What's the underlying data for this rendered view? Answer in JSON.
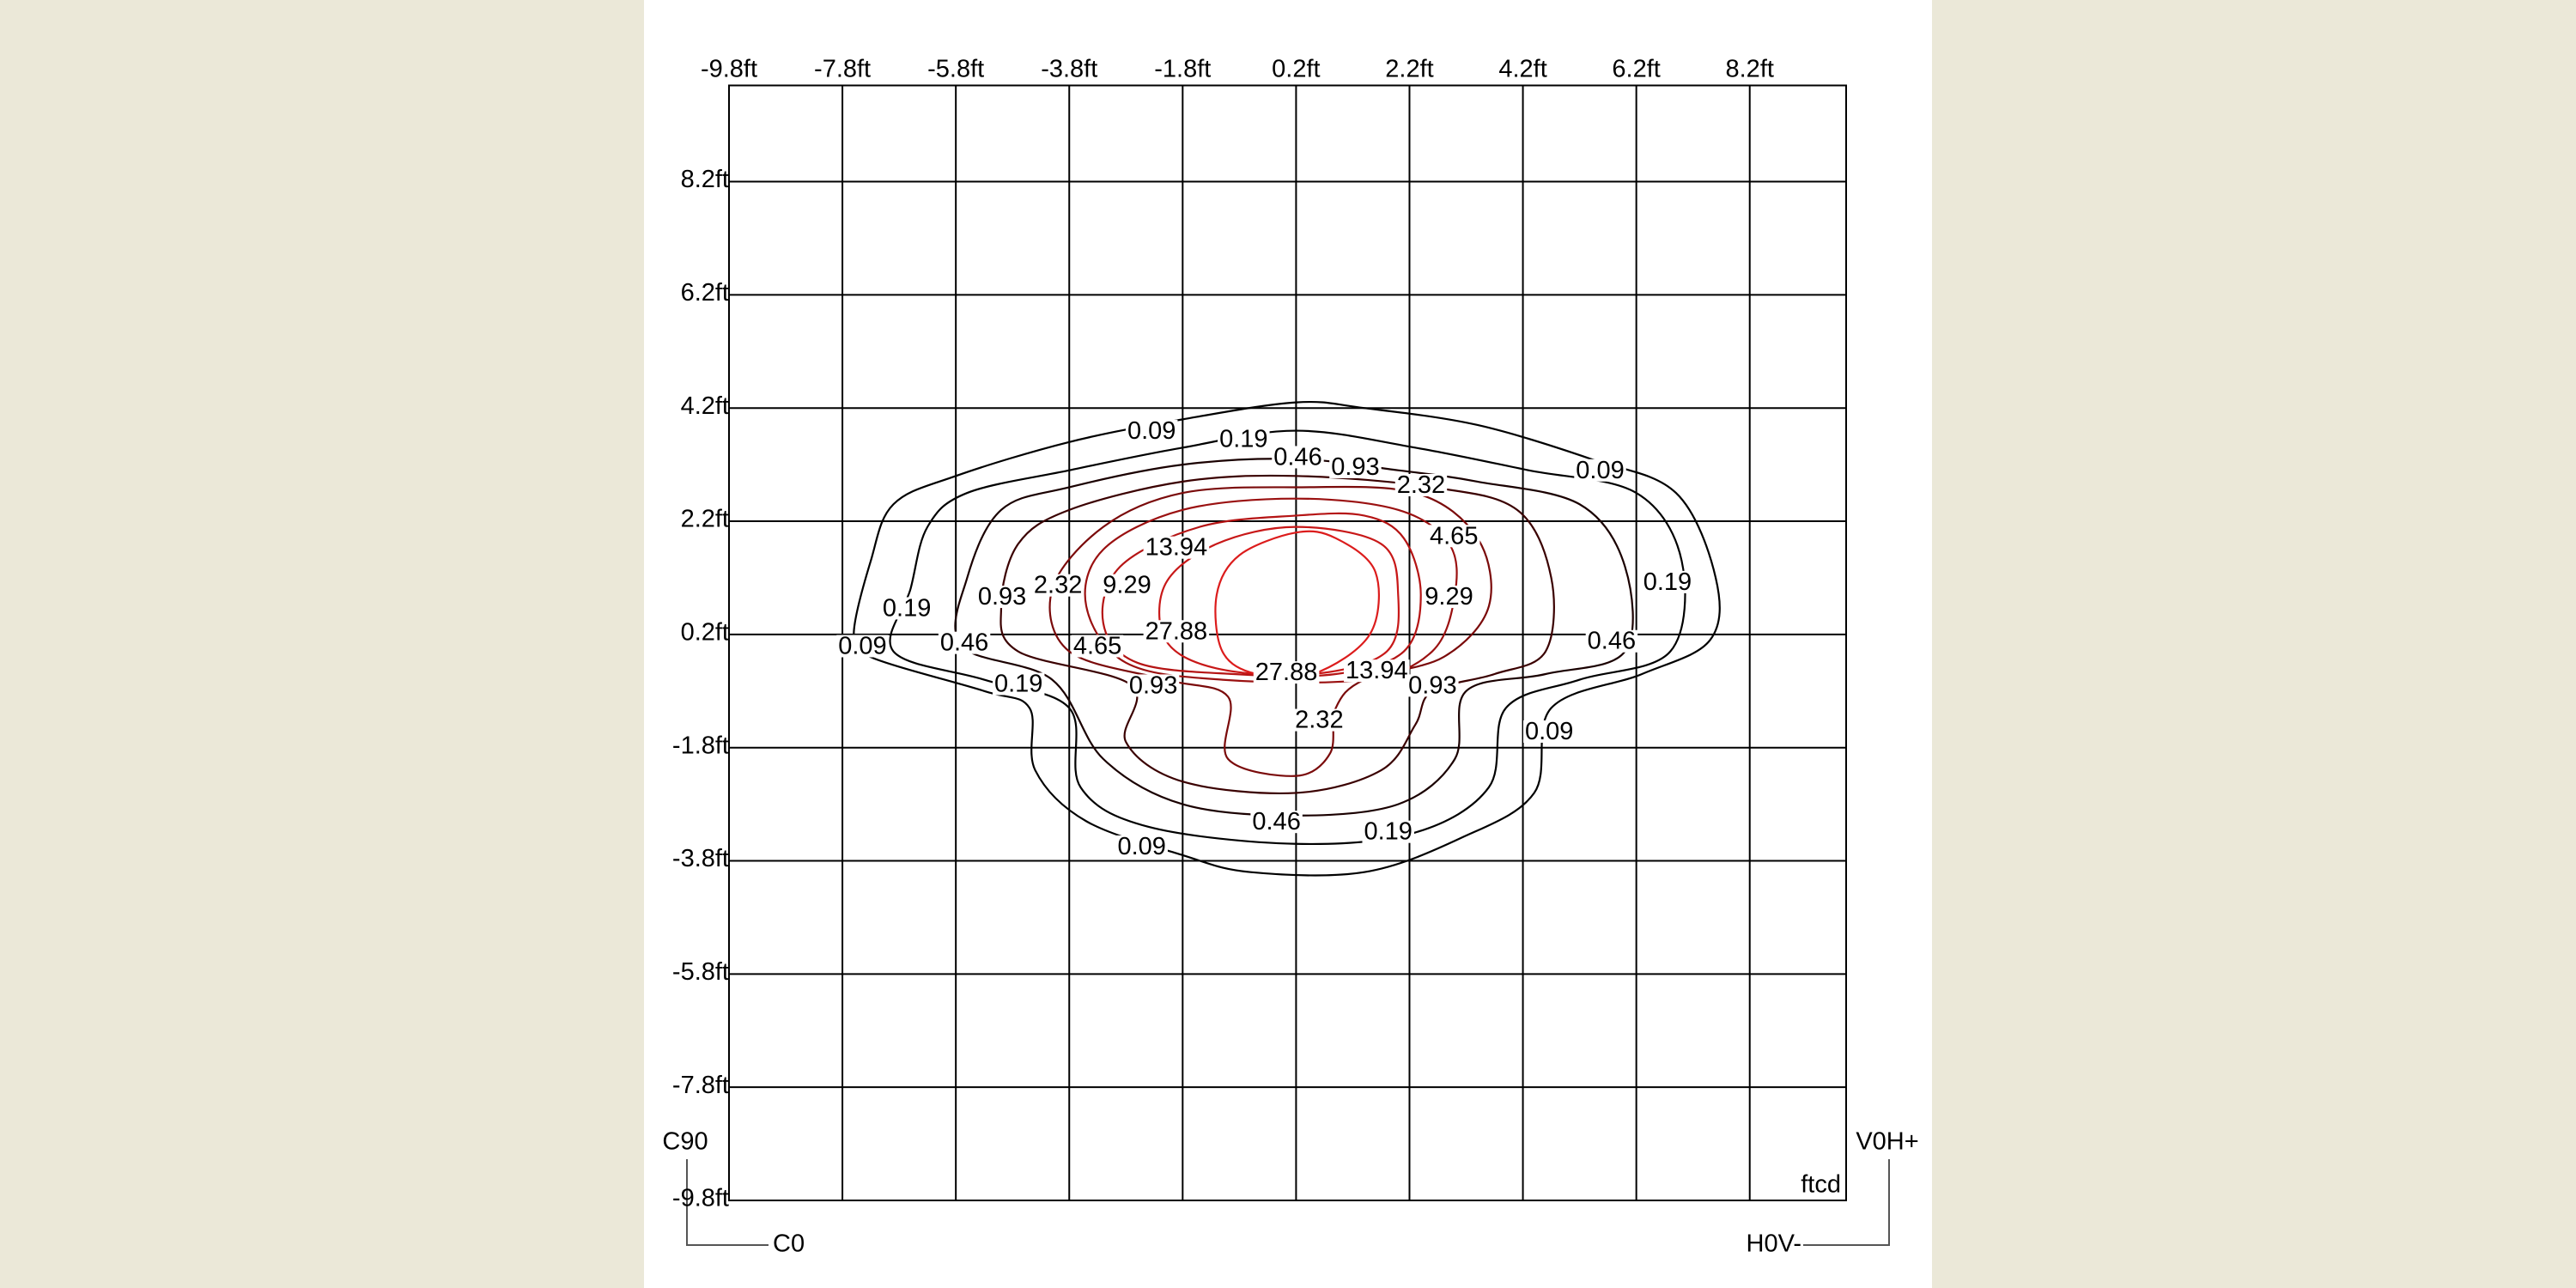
{
  "chart_data": {
    "type": "contour",
    "xlim": [
      -9.8,
      9.9
    ],
    "ylim": [
      -9.8,
      9.9
    ],
    "grid": true,
    "xticks": [
      {
        "value": -9.8,
        "label": "-9.8ft"
      },
      {
        "value": -7.8,
        "label": "-7.8ft"
      },
      {
        "value": -5.8,
        "label": "-5.8ft"
      },
      {
        "value": -3.8,
        "label": "-3.8ft"
      },
      {
        "value": -1.8,
        "label": "-1.8ft"
      },
      {
        "value": 0.2,
        "label": "0.2ft"
      },
      {
        "value": 2.2,
        "label": "2.2ft"
      },
      {
        "value": 4.2,
        "label": "4.2ft"
      },
      {
        "value": 6.2,
        "label": "6.2ft"
      },
      {
        "value": 8.2,
        "label": "8.2ft"
      }
    ],
    "yticks": [
      {
        "value": -9.8,
        "label": "-9.8ft"
      },
      {
        "value": -7.8,
        "label": "-7.8ft"
      },
      {
        "value": -5.8,
        "label": "-5.8ft"
      },
      {
        "value": -3.8,
        "label": "-3.8ft"
      },
      {
        "value": -1.8,
        "label": "-1.8ft"
      },
      {
        "value": 0.2,
        "label": "0.2ft"
      },
      {
        "value": 2.2,
        "label": "2.2ft"
      },
      {
        "value": 4.2,
        "label": "4.2ft"
      },
      {
        "value": 6.2,
        "label": "6.2ft"
      },
      {
        "value": 8.2,
        "label": "8.2ft"
      }
    ],
    "unit_label": "ftcd",
    "corner_labels": {
      "top_left": "C90",
      "bottom_left": "C0",
      "top_right": "V0H+",
      "bottom_right": "H0V-"
    },
    "contours": [
      {
        "level": 0.09,
        "color": "#000000",
        "x": [
          0.2,
          -1.8,
          -3.8,
          -5.8,
          -6.9,
          -7.3,
          -7.6,
          -7.3,
          -5.3,
          -4.5,
          -4.4,
          -3.5,
          -1.8,
          -0.6,
          1.4,
          3.1,
          4.4,
          4.7,
          6.3,
          7.5,
          7.6,
          6.9,
          5.4,
          3.4,
          1.4
        ],
        "y": [
          4.3,
          4.0,
          3.6,
          3.0,
          2.5,
          1.5,
          0.2,
          -0.2,
          -0.8,
          -1.1,
          -2.2,
          -3.1,
          -3.7,
          -4.0,
          -4.0,
          -3.4,
          -2.6,
          -1.1,
          -0.5,
          0.1,
          1.2,
          2.7,
          3.3,
          3.9,
          4.2
        ]
      },
      {
        "level": 0.19,
        "color": "#000000",
        "x": [
          0.2,
          -1.8,
          -3.8,
          -5.6,
          -6.3,
          -6.6,
          -6.9,
          -5.3,
          -3.8,
          -3.6,
          -2.4,
          0.2,
          2.3,
          3.6,
          3.9,
          5.2,
          6.8,
          7.0,
          6.2,
          4.3,
          2.3
        ],
        "y": [
          3.8,
          3.5,
          3.1,
          2.7,
          2.1,
          1.0,
          -0.1,
          -0.6,
          -1.1,
          -2.5,
          -3.2,
          -3.5,
          -3.3,
          -2.5,
          -1.1,
          -0.6,
          -0.1,
          1.5,
          2.7,
          3.1,
          3.5
        ]
      },
      {
        "level": 0.46,
        "color": "#1a0000",
        "x": [
          0.2,
          -1.8,
          -3.8,
          -5.0,
          -5.6,
          -5.7,
          -4.1,
          -3.2,
          -1.8,
          0.2,
          2.0,
          3.0,
          3.2,
          4.6,
          6.0,
          6.0,
          5.2,
          3.4,
          2.0
        ],
        "y": [
          3.3,
          3.2,
          2.8,
          2.4,
          1.2,
          0.0,
          -0.6,
          -2.0,
          -2.8,
          -3.0,
          -2.8,
          -2.0,
          -0.8,
          -0.5,
          -0.1,
          1.4,
          2.5,
          2.9,
          3.1
        ]
      },
      {
        "level": 0.93,
        "color": "#3a0000",
        "x": [
          0.2,
          -1.8,
          -3.8,
          -4.7,
          -5.0,
          -4.7,
          -2.7,
          -2.8,
          -1.8,
          0.2,
          1.7,
          2.3,
          2.6,
          3.7,
          4.6,
          4.7,
          4.1,
          2.6
        ],
        "y": [
          3.0,
          2.9,
          2.4,
          1.8,
          0.7,
          -0.1,
          -0.7,
          -1.7,
          -2.4,
          -2.6,
          -2.2,
          -1.4,
          -0.8,
          -0.5,
          -0.1,
          1.2,
          2.4,
          2.8
        ]
      },
      {
        "level": 2.32,
        "color": "#7a0a0a",
        "x": [
          0.2,
          -1.8,
          -3.2,
          -4.1,
          -3.8,
          -2.1,
          -1.0,
          -1.0,
          0.2,
          0.8,
          0.9,
          1.4,
          2.8,
          3.6,
          3.4,
          2.3
        ],
        "y": [
          2.8,
          2.7,
          2.1,
          1.0,
          -0.1,
          -0.6,
          -0.9,
          -2.0,
          -2.3,
          -1.9,
          -1.1,
          -0.6,
          -0.2,
          0.7,
          1.9,
          2.7
        ]
      },
      {
        "level": 4.65,
        "color": "#9a1010",
        "x": [
          0.2,
          -1.8,
          -3.2,
          -3.5,
          -2.8,
          -1.1,
          1.4,
          2.6,
          3.0,
          2.9,
          2.0
        ],
        "y": [
          2.6,
          2.4,
          1.7,
          0.7,
          -0.3,
          -0.6,
          -0.6,
          -0.1,
          0.9,
          1.8,
          2.4
        ]
      },
      {
        "level": 9.29,
        "color": "#b51414",
        "x": [
          0.2,
          -1.5,
          -2.9,
          -3.2,
          -2.6,
          -0.9,
          0.9,
          2.1,
          2.4,
          2.1,
          1.4
        ],
        "y": [
          2.3,
          2.1,
          1.4,
          0.4,
          -0.3,
          -0.5,
          -0.5,
          -0.1,
          0.9,
          1.9,
          2.3
        ]
      },
      {
        "level": 13.94,
        "color": "#c81818",
        "x": [
          0.2,
          -1.2,
          -2.1,
          -2.1,
          -1.2,
          0.5,
          1.8,
          2.0,
          1.7
        ],
        "y": [
          2.1,
          1.8,
          1.1,
          0.1,
          -0.4,
          -0.5,
          -0.1,
          0.9,
          1.8
        ]
      },
      {
        "level": 27.88,
        "color": "#dc1c1c",
        "x": [
          0.2,
          -0.8,
          -1.2,
          -1.1,
          -0.5,
          0.5,
          1.5,
          1.6,
          0.9
        ],
        "y": [
          2.0,
          1.6,
          0.9,
          -0.1,
          -0.5,
          -0.5,
          0.2,
          1.3,
          1.9
        ]
      }
    ]
  }
}
